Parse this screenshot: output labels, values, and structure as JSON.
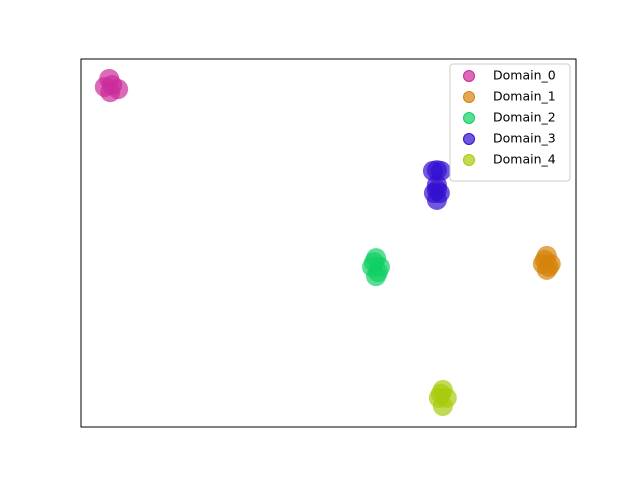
{
  "chart_data": {
    "type": "scatter",
    "xlim": [
      0,
      100
    ],
    "ylim": [
      0,
      100
    ],
    "legend": "upper right",
    "alpha": 0.7,
    "series": [
      {
        "name": "Domain_0",
        "color": "#cc2b9a",
        "x": [
          5.7,
          4.8,
          5.9,
          7.5,
          6.3
        ],
        "values": [
          94.6,
          92.4,
          91.0,
          91.8,
          92.9
        ]
      },
      {
        "name": "Domain_1",
        "color": "#d6830b",
        "x": [
          94.1,
          93.3,
          94.9,
          94.1,
          93.7,
          94.5
        ],
        "values": [
          46.5,
          44.3,
          44.3,
          42.7,
          45.4,
          43.5
        ]
      },
      {
        "name": "Domain_2",
        "color": "#10d064",
        "x": [
          59.6,
          58.8,
          60.4,
          59.6,
          59.2,
          60.0
        ],
        "values": [
          45.9,
          43.5,
          43.5,
          41.0,
          44.8,
          42.1
        ]
      },
      {
        "name": "Domain_3",
        "color": "#3310d0",
        "x": [
          71.1,
          72.7,
          71.9,
          71.9,
          71.3,
          72.5,
          71.9,
          71.9
        ],
        "values": [
          69.6,
          69.6,
          69.8,
          65.8,
          63.6,
          63.6,
          61.7,
          64.4
        ]
      },
      {
        "name": "Domain_4",
        "color": "#a6cc0c",
        "x": [
          73.1,
          72.3,
          73.9,
          73.1,
          72.7
        ],
        "values": [
          10.1,
          7.9,
          7.9,
          5.7,
          9.0
        ]
      }
    ]
  }
}
